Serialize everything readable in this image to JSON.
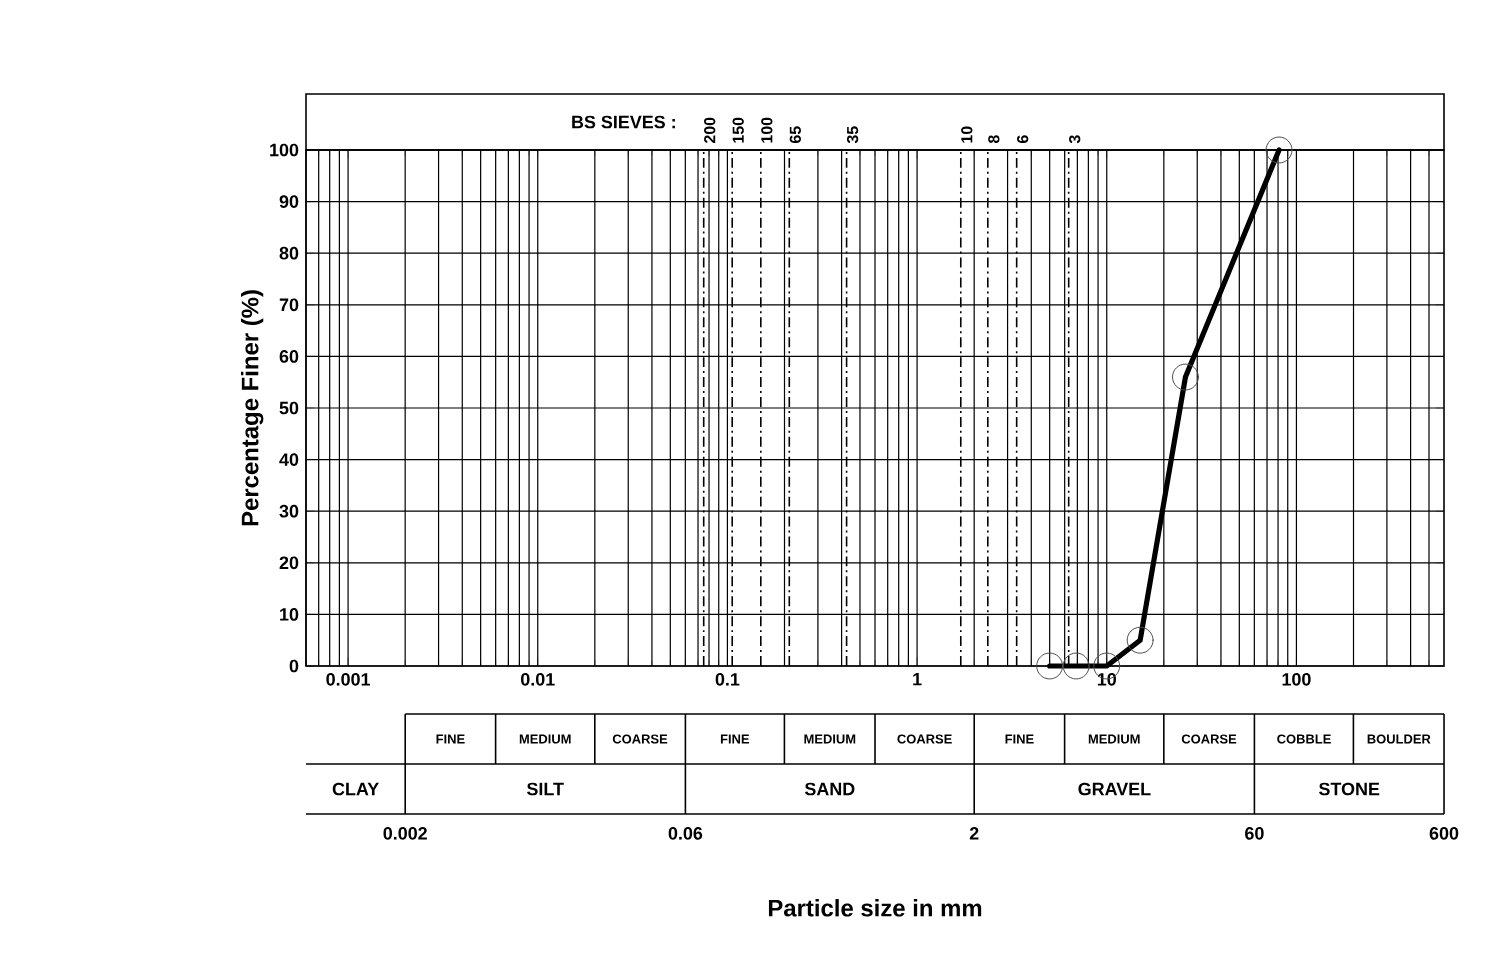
{
  "chart_data": {
    "type": "line",
    "ylabel": "Percentage Finer  (%)",
    "log": "x",
    "xlim": [
      0.0006,
      600
    ],
    "ylim": [
      0,
      100
    ],
    "xticks": [
      0.001,
      0.01,
      0.1,
      1,
      10,
      100
    ],
    "yticks": [
      0,
      10,
      20,
      30,
      40,
      50,
      60,
      70,
      80,
      90,
      100
    ],
    "grid": true,
    "marker": "circle",
    "line_style": "solid",
    "color": "#000000",
    "x": [
      5,
      6.9,
      10,
      15,
      26,
      81
    ],
    "values": [
      0,
      0,
      0,
      5,
      56,
      100
    ],
    "ref_lines": [
      {
        "axis": "x",
        "value": 0.075,
        "line_style": "dashed"
      },
      {
        "axis": "x",
        "value": 0.106,
        "line_style": "dashed"
      },
      {
        "axis": "x",
        "value": 0.15,
        "line_style": "dashed"
      },
      {
        "axis": "x",
        "value": 0.212,
        "line_style": "dashed"
      },
      {
        "axis": "x",
        "value": 0.425,
        "line_style": "dashed"
      },
      {
        "axis": "x",
        "value": 1.7,
        "line_style": "dashed"
      },
      {
        "axis": "x",
        "value": 2.36,
        "line_style": "dashed"
      },
      {
        "axis": "x",
        "value": 3.35,
        "line_style": "dashed"
      },
      {
        "axis": "x",
        "value": 6.3,
        "line_style": "dashed"
      }
    ],
    "annotations": [
      "BS SIEVES :",
      "200",
      "150",
      "100",
      "65",
      "35",
      "10",
      "8",
      "6",
      "3",
      "CLAY",
      "SILT",
      "SAND",
      "GRAVEL",
      "STONE",
      "FINE",
      "MEDIUM",
      "COARSE",
      "FINE",
      "MEDIUM",
      "COARSE",
      "FINE",
      "MEDIUM",
      "COARSE",
      "COBBLE",
      "BOULDER",
      "0.002",
      "0.06",
      "2",
      "60",
      "600",
      "Particle size in mm"
    ]
  }
}
